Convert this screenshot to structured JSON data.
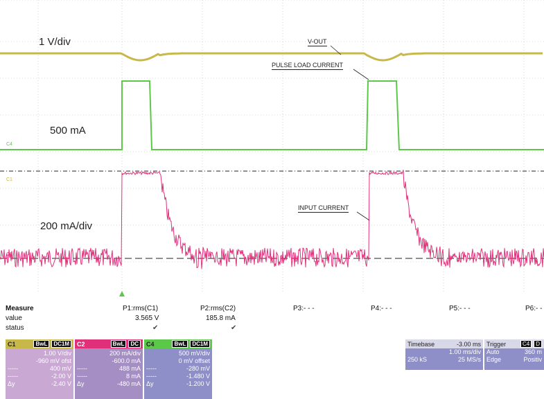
{
  "annotations": {
    "v_scale": "1 V/div",
    "ma500": "500 mA",
    "ma200": "200 mA/div",
    "vout": "V-OUT",
    "pulse": "PULSE LOAD CURRENT",
    "input": "INPUT CURRENT"
  },
  "channel_markers": {
    "c4": "C4",
    "c1": "C1",
    "c2": "C2"
  },
  "measure": {
    "header": "Measure",
    "value_label": "value",
    "status_label": "status",
    "params": [
      {
        "name": "P1:rms(C1)",
        "value": "3.565 V",
        "status": "✔"
      },
      {
        "name": "P2:rms(C2)",
        "value": "185.8 mA",
        "status": "✔"
      },
      {
        "name": "P3:- - -",
        "value": "",
        "status": ""
      },
      {
        "name": "P4:- - -",
        "value": "",
        "status": ""
      },
      {
        "name": "P5:- - -",
        "value": "",
        "status": ""
      },
      {
        "name": "P6:- -",
        "value": "",
        "status": ""
      }
    ]
  },
  "channels": [
    {
      "name": "C1",
      "tag1": "BwL",
      "tag2": "DC1M",
      "color": "#c8b84a",
      "body": "#c9a8d4",
      "scale": "1.00 V/div",
      "offset": "-960 mV ofst",
      "v1": "400 mV",
      "v2": "-2.00 V",
      "dy_label": "Δy",
      "dy": "-2.40 V"
    },
    {
      "name": "C2",
      "tag1": "BwL",
      "tag2": "DC",
      "color": "#e0307a",
      "body": "#a48ec4",
      "scale": "200 mA/div",
      "offset": "-600.0 mA",
      "v1": "488 mA",
      "v2": "8 mA",
      "dy_label": "Δy",
      "dy": "-480 mA"
    },
    {
      "name": "C4",
      "tag1": "BwL",
      "tag2": "DC1M",
      "color": "#5cc84a",
      "body": "#8e8ec8",
      "scale": "500 mV/div",
      "offset": "0 mV offset",
      "v1": "-280 mV",
      "v2": "-1.480 V",
      "dy_label": "Δy",
      "dy": "-1.200 V"
    }
  ],
  "timebase": {
    "label": "Timebase",
    "delay": "-3.00 ms",
    "per_div": "1.00 ms/div",
    "samples": "250 kS",
    "rate": "25 MS/s"
  },
  "trigger": {
    "label": "Trigger",
    "tag": "C4",
    "tag2": "D",
    "mode": "Auto",
    "level": "360 m",
    "type": "Edge",
    "slope": "Positiv"
  },
  "colors": {
    "c1": "#c8b84a",
    "c2": "#e0307a",
    "c4": "#5cc84a",
    "grid": "#b8b8b8"
  }
}
